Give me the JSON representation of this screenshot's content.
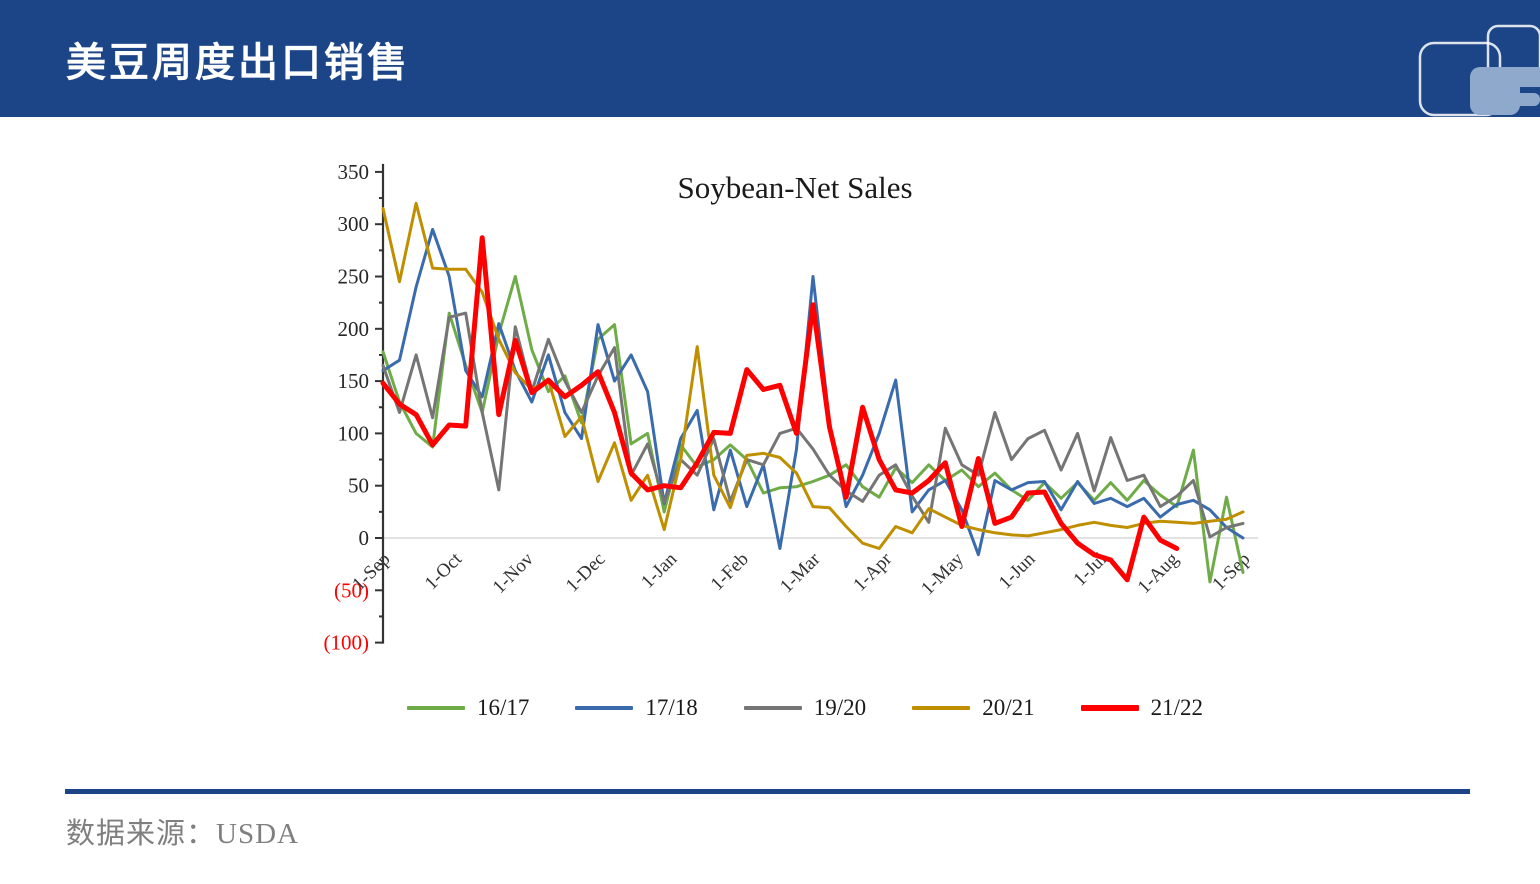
{
  "header": {
    "title": "美豆周度出口销售"
  },
  "footer": {
    "source_label": "数据来源：USDA"
  },
  "colors": {
    "header-bg": "#1c4587",
    "logo-fill": "#8ea9cc",
    "footer-text": "#7f7f7f"
  },
  "chart_data": {
    "type": "line",
    "title": "Soybean-Net Sales",
    "xlabel": "",
    "ylabel": "",
    "x_unit": "week",
    "ylim": [
      -100,
      350
    ],
    "grid": "zero-line-only",
    "legend_position": "bottom",
    "x_tick_labels": [
      "1-Sep",
      "1-Oct",
      "1-Nov",
      "1-Dec",
      "1-Jan",
      "1-Feb",
      "1-Mar",
      "1-Apr",
      "1-May",
      "1-Jun",
      "1-Jul",
      "1-Aug",
      "1-Sep"
    ],
    "y_ticks": [
      {
        "value": 350,
        "label": "350"
      },
      {
        "value": 300,
        "label": "300"
      },
      {
        "value": 250,
        "label": "250"
      },
      {
        "value": 200,
        "label": "200"
      },
      {
        "value": 150,
        "label": "150"
      },
      {
        "value": 100,
        "label": "100"
      },
      {
        "value": 50,
        "label": "50"
      },
      {
        "value": 0,
        "label": "0"
      },
      {
        "value": -50,
        "label": "(50)"
      },
      {
        "value": -100,
        "label": "(100)"
      }
    ],
    "series": [
      {
        "name": "16/17",
        "color": "#6fac47",
        "width": 3,
        "values": [
          178,
          130,
          100,
          87,
          215,
          165,
          120,
          195,
          250,
          180,
          140,
          155,
          110,
          190,
          204,
          90,
          100,
          25,
          89,
          68,
          75,
          89,
          75,
          43,
          48,
          49,
          54,
          60,
          70,
          49,
          39,
          67,
          53,
          70,
          55,
          65,
          49,
          62,
          46,
          36,
          53,
          38,
          53,
          36,
          53,
          36,
          55,
          41,
          30,
          84,
          -42,
          39,
          -33
        ]
      },
      {
        "name": "17/18",
        "color": "#3a6bad",
        "width": 3,
        "values": [
          160,
          170,
          240,
          295,
          250,
          160,
          135,
          205,
          160,
          130,
          175,
          120,
          95,
          204,
          150,
          175,
          140,
          33,
          95,
          122,
          27,
          84,
          30,
          70,
          -10,
          85,
          250,
          110,
          30,
          60,
          100,
          151,
          25,
          46,
          55,
          27,
          -16,
          55,
          46,
          53,
          54,
          27,
          54,
          33,
          38,
          30,
          38,
          20,
          32,
          36,
          27,
          10,
          0
        ]
      },
      {
        "name": "19/20",
        "color": "#757575",
        "width": 3,
        "values": [
          165,
          120,
          175,
          115,
          211,
          215,
          120,
          46,
          202,
          140,
          190,
          150,
          120,
          155,
          182,
          60,
          90,
          34,
          75,
          60,
          95,
          35,
          75,
          70,
          100,
          105,
          85,
          60,
          45,
          35,
          60,
          70,
          40,
          15,
          105,
          70,
          60,
          120,
          75,
          95,
          103,
          65,
          100,
          45,
          96,
          55,
          60,
          30,
          40,
          55,
          1,
          10,
          14
        ]
      },
      {
        "name": "20/21",
        "color": "#bf8f00",
        "width": 3,
        "values": [
          315,
          245,
          320,
          258,
          257,
          257,
          235,
          190,
          158,
          142,
          151,
          97,
          116,
          54,
          91,
          36,
          60,
          8,
          75,
          183,
          60,
          29,
          79,
          81,
          77,
          62,
          30,
          29,
          11,
          -5,
          -10,
          11,
          5,
          28,
          20,
          12,
          8,
          5,
          3,
          2,
          5,
          8,
          12,
          15,
          12,
          10,
          14,
          16,
          15,
          14,
          16,
          18,
          25
        ]
      },
      {
        "name": "21/22",
        "color": "#ff0000",
        "width": 5,
        "values": [
          148,
          128,
          118,
          89,
          108,
          107,
          287,
          118,
          189,
          139,
          151,
          135,
          146,
          159,
          120,
          62,
          46,
          50,
          48,
          72,
          101,
          100,
          161,
          142,
          146,
          100,
          223,
          106,
          39,
          125,
          75,
          46,
          43,
          55,
          72,
          11,
          76,
          14,
          20,
          43,
          44,
          14,
          -5,
          -16,
          -21,
          -40,
          20,
          -2,
          -10
        ]
      }
    ]
  }
}
